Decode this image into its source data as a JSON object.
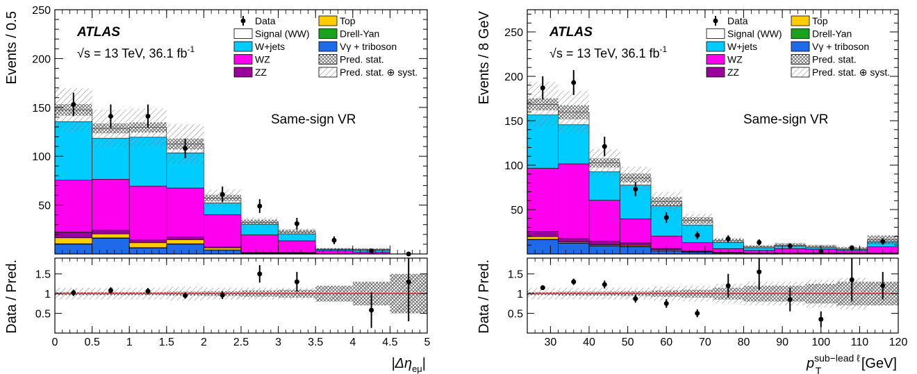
{
  "chart_data": [
    {
      "type": "bar",
      "stacked": true,
      "experiment": "ATLAS",
      "energy_label": "√s = 13 TeV, 36.1 fb",
      "lumi_superscript": "-1",
      "region_label": "Same-sign VR",
      "ylabel": "Events / 0.5",
      "ratio_ylabel": "Data / Pred.",
      "xlabel": "|Δη",
      "xlabel_sub": "eμ",
      "xlabel_suffix": "|",
      "xlim": [
        0,
        5
      ],
      "ylim": [
        0,
        250
      ],
      "ratio_ylim": [
        0,
        1.9
      ],
      "x_ticks": [
        "0",
        "0.5",
        "1",
        "1.5",
        "2",
        "2.5",
        "3",
        "3.5",
        "4",
        "4.5",
        "5"
      ],
      "y_ticks": [
        "50",
        "100",
        "150",
        "200",
        "250"
      ],
      "ratio_y_ticks": [
        "0.5",
        "1",
        "1.5"
      ],
      "bin_edges": [
        0,
        0.5,
        1,
        1.5,
        2,
        2.5,
        3,
        3.5,
        4,
        4.5,
        5
      ],
      "series": [
        {
          "name": "Vγ + triboson",
          "values": [
            10,
            16,
            6,
            10,
            4,
            0.5,
            0.5,
            0.2,
            0.2,
            0
          ]
        },
        {
          "name": "Drell-Yan",
          "values": [
            0.5,
            0.5,
            0.5,
            0.5,
            0.2,
            0,
            0,
            0,
            0,
            0
          ]
        },
        {
          "name": "Top",
          "values": [
            6,
            4,
            5,
            4,
            2,
            0.5,
            0.5,
            0.1,
            0.1,
            0
          ]
        },
        {
          "name": "ZZ",
          "values": [
            6,
            4,
            3,
            3,
            1,
            0.5,
            0.5,
            0.2,
            0.2,
            0
          ]
        },
        {
          "name": "WZ",
          "values": [
            53,
            52,
            55,
            50,
            33,
            18,
            12,
            3,
            1.5,
            0
          ]
        },
        {
          "name": "W+jets",
          "values": [
            60,
            42,
            50,
            36,
            12,
            11,
            7,
            1,
            2,
            0
          ]
        },
        {
          "name": "Signal (WW)",
          "values": [
            12,
            10,
            10,
            9,
            5,
            2,
            2,
            0.5,
            0.5,
            0
          ]
        }
      ],
      "data_points": {
        "x": [
          0.25,
          0.75,
          1.25,
          1.75,
          2.25,
          2.75,
          3.25,
          3.75,
          4.25,
          4.75
        ],
        "y": [
          153,
          141,
          141,
          108,
          61,
          49,
          31,
          14,
          3,
          0
        ],
        "err": [
          12,
          12,
          12,
          10,
          8,
          7,
          6,
          4,
          2,
          1.5
        ]
      },
      "uncertainty_stat_rel": [
        0.04,
        0.04,
        0.04,
        0.05,
        0.06,
        0.08,
        0.1,
        0.2,
        0.3,
        0.5
      ],
      "uncertainty_total_rel": [
        0.15,
        0.15,
        0.15,
        0.18,
        0.15,
        0.15,
        0.15,
        0.2,
        0.3,
        0.5
      ],
      "ratio": {
        "y": [
          1.02,
          1.08,
          1.06,
          0.95,
          0.96,
          1.5,
          1.3,
          null,
          0.58,
          1.3
        ],
        "err": [
          0.08,
          0.08,
          0.08,
          0.08,
          0.1,
          0.22,
          0.25,
          null,
          0.45,
          1.0
        ]
      }
    },
    {
      "type": "bar",
      "stacked": true,
      "experiment": "ATLAS",
      "energy_label": "√s = 13 TeV, 36.1 fb",
      "lumi_superscript": "-1",
      "region_label": "Same-sign VR",
      "ylabel": "Events / 8 GeV",
      "ratio_ylabel": "Data / Pred.",
      "xlabel": "p",
      "xlabel_sub": "T",
      "xlabel_sup": "sub−lead ℓ",
      "xlabel_suffix": " [GeV]",
      "xlim": [
        24,
        120
      ],
      "ylim": [
        0,
        275
      ],
      "ratio_ylim": [
        0,
        1.9
      ],
      "x_ticks": [
        "30",
        "40",
        "50",
        "60",
        "70",
        "80",
        "90",
        "100",
        "110",
        "120"
      ],
      "y_ticks": [
        "50",
        "100",
        "150",
        "200",
        "250"
      ],
      "ratio_y_ticks": [
        "0.5",
        "1",
        "1.5"
      ],
      "bin_edges": [
        24,
        32,
        40,
        48,
        56,
        64,
        72,
        80,
        88,
        96,
        104,
        112,
        120
      ],
      "series": [
        {
          "name": "Vγ + triboson",
          "values": [
            16,
            12,
            9,
            8,
            3,
            2,
            1,
            0.5,
            0.5,
            0.5,
            0.5,
            0.5
          ]
        },
        {
          "name": "Drell-Yan",
          "values": [
            0.5,
            0.5,
            0.5,
            0.5,
            0.2,
            0.2,
            0.1,
            0,
            0,
            0,
            0,
            0
          ]
        },
        {
          "name": "Top",
          "values": [
            3,
            1,
            1,
            1,
            1,
            0.5,
            0.3,
            0.2,
            0.2,
            0.2,
            0.2,
            0.2
          ]
        },
        {
          "name": "ZZ",
          "values": [
            6,
            4,
            4,
            3,
            2,
            1,
            0.5,
            0.3,
            0.3,
            0.3,
            0.3,
            0.3
          ]
        },
        {
          "name": "WZ",
          "values": [
            71,
            84,
            46,
            27,
            14,
            9,
            4,
            3,
            5,
            4,
            3,
            7
          ]
        },
        {
          "name": "W+jets",
          "values": [
            60,
            44,
            32,
            38,
            34,
            20,
            7,
            3,
            3,
            2,
            1,
            6
          ]
        },
        {
          "name": "Signal (WW)",
          "values": [
            12,
            14,
            10,
            8,
            5,
            5,
            2,
            1,
            1,
            1,
            1,
            2
          ]
        }
      ],
      "data_points": {
        "x": [
          28,
          36,
          44,
          52,
          60,
          68,
          76,
          84,
          92,
          100,
          108,
          116
        ],
        "y": [
          187,
          193,
          121,
          73,
          41,
          21,
          17,
          13,
          9,
          3,
          7,
          14
        ],
        "err": [
          13,
          14,
          11,
          8,
          6,
          4.5,
          4,
          3.5,
          3,
          1.7,
          2.6,
          3.7
        ]
      },
      "uncertainty_stat_rel": [
        0.04,
        0.05,
        0.05,
        0.06,
        0.08,
        0.1,
        0.15,
        0.2,
        0.2,
        0.25,
        0.3,
        0.3
      ],
      "uncertainty_total_rel": [
        0.15,
        0.15,
        0.15,
        0.15,
        0.18,
        0.2,
        0.25,
        0.3,
        0.3,
        0.35,
        0.4,
        0.3
      ],
      "ratio": {
        "y": [
          1.15,
          1.3,
          1.23,
          0.87,
          0.75,
          0.5,
          1.2,
          1.55,
          0.85,
          0.35,
          1.35,
          1.2
        ],
        "err": [
          0.06,
          0.08,
          0.1,
          0.1,
          0.11,
          0.1,
          0.3,
          0.45,
          0.3,
          0.2,
          0.55,
          0.35
        ]
      }
    }
  ],
  "legend": [
    {
      "label": "Data",
      "kind": "marker"
    },
    {
      "label": "Top",
      "kind": "fill",
      "color": "#ffcc00"
    },
    {
      "label": "Signal (WW)",
      "kind": "fill",
      "color": "#ffffff"
    },
    {
      "label": "Drell-Yan",
      "kind": "fill",
      "color": "#1aa31a"
    },
    {
      "label": "W+jets",
      "kind": "fill",
      "color": "#00ccff"
    },
    {
      "label": "Vγ + triboson",
      "kind": "fill",
      "color": "#1f6ae8"
    },
    {
      "label": "WZ",
      "kind": "fill",
      "color": "#ff00ee"
    },
    {
      "label": "Pred. stat.",
      "kind": "crosshatch"
    },
    {
      "label": "ZZ",
      "kind": "fill",
      "color": "#990099"
    },
    {
      "label": "Pred. stat. ⊕ syst.",
      "kind": "hatch"
    }
  ],
  "colors": {
    "Signal (WW)": "#ffffff",
    "W+jets": "#00ccff",
    "WZ": "#ff00ee",
    "ZZ": "#990099",
    "Top": "#ffcc00",
    "Drell-Yan": "#1aa31a",
    "Vγ + triboson": "#1f6ae8",
    "ratio_line": "#ff0000"
  }
}
